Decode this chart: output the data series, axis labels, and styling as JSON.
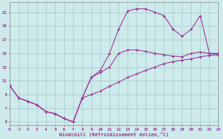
{
  "xlabel": "Windchill (Refroidissement éolien,°C)",
  "xlim": [
    0,
    23
  ],
  "ylim": [
    4.5,
    22.5
  ],
  "xticks": [
    0,
    1,
    2,
    3,
    4,
    5,
    6,
    7,
    8,
    9,
    10,
    11,
    12,
    13,
    14,
    15,
    16,
    17,
    18,
    19,
    20,
    21,
    22,
    23
  ],
  "yticks": [
    5,
    7,
    9,
    11,
    13,
    15,
    17,
    19,
    21
  ],
  "background_color": "#ceeaea",
  "grid_color": "#aacece",
  "line_color": "#993399",
  "line1_x": [
    0,
    1,
    2,
    3,
    4,
    5,
    6,
    7,
    8,
    9,
    10,
    11,
    12,
    13,
    14,
    15,
    16,
    17,
    18,
    19,
    20,
    21,
    22,
    23
  ],
  "line1_y": [
    10.3,
    8.5,
    8.0,
    7.5,
    6.5,
    6.2,
    5.5,
    5.0,
    8.5,
    9.0,
    9.5,
    10.2,
    10.8,
    11.5,
    12.0,
    12.5,
    13.0,
    13.5,
    13.8,
    14.0,
    14.2,
    14.5,
    14.7,
    14.8
  ],
  "line2_x": [
    0,
    1,
    2,
    3,
    4,
    5,
    6,
    7,
    8,
    9,
    10,
    11,
    12,
    13,
    14,
    15,
    16,
    17,
    18,
    19,
    20,
    21,
    22,
    23
  ],
  "line2_y": [
    10.3,
    8.5,
    8.0,
    7.5,
    6.5,
    6.2,
    5.5,
    5.0,
    8.5,
    11.5,
    12.2,
    13.0,
    15.0,
    15.5,
    15.5,
    15.3,
    15.0,
    14.8,
    14.6,
    14.5,
    15.0,
    15.2,
    15.0,
    15.0
  ],
  "line3_x": [
    0,
    1,
    2,
    3,
    4,
    5,
    6,
    7,
    8,
    9,
    10,
    11,
    12,
    13,
    14,
    15,
    16,
    17,
    18
  ],
  "line3_y": [
    10.3,
    8.5,
    8.0,
    7.5,
    6.5,
    6.2,
    5.5,
    5.0,
    8.5,
    11.5,
    12.5,
    15.0,
    18.5,
    21.2,
    21.5,
    21.5,
    21.0,
    20.5,
    18.5
  ],
  "line3b_x": [
    18,
    19,
    20,
    21,
    22,
    23
  ],
  "line3b_y": [
    18.5,
    17.5,
    18.5,
    20.5,
    15.0,
    14.8
  ],
  "marker": "+"
}
